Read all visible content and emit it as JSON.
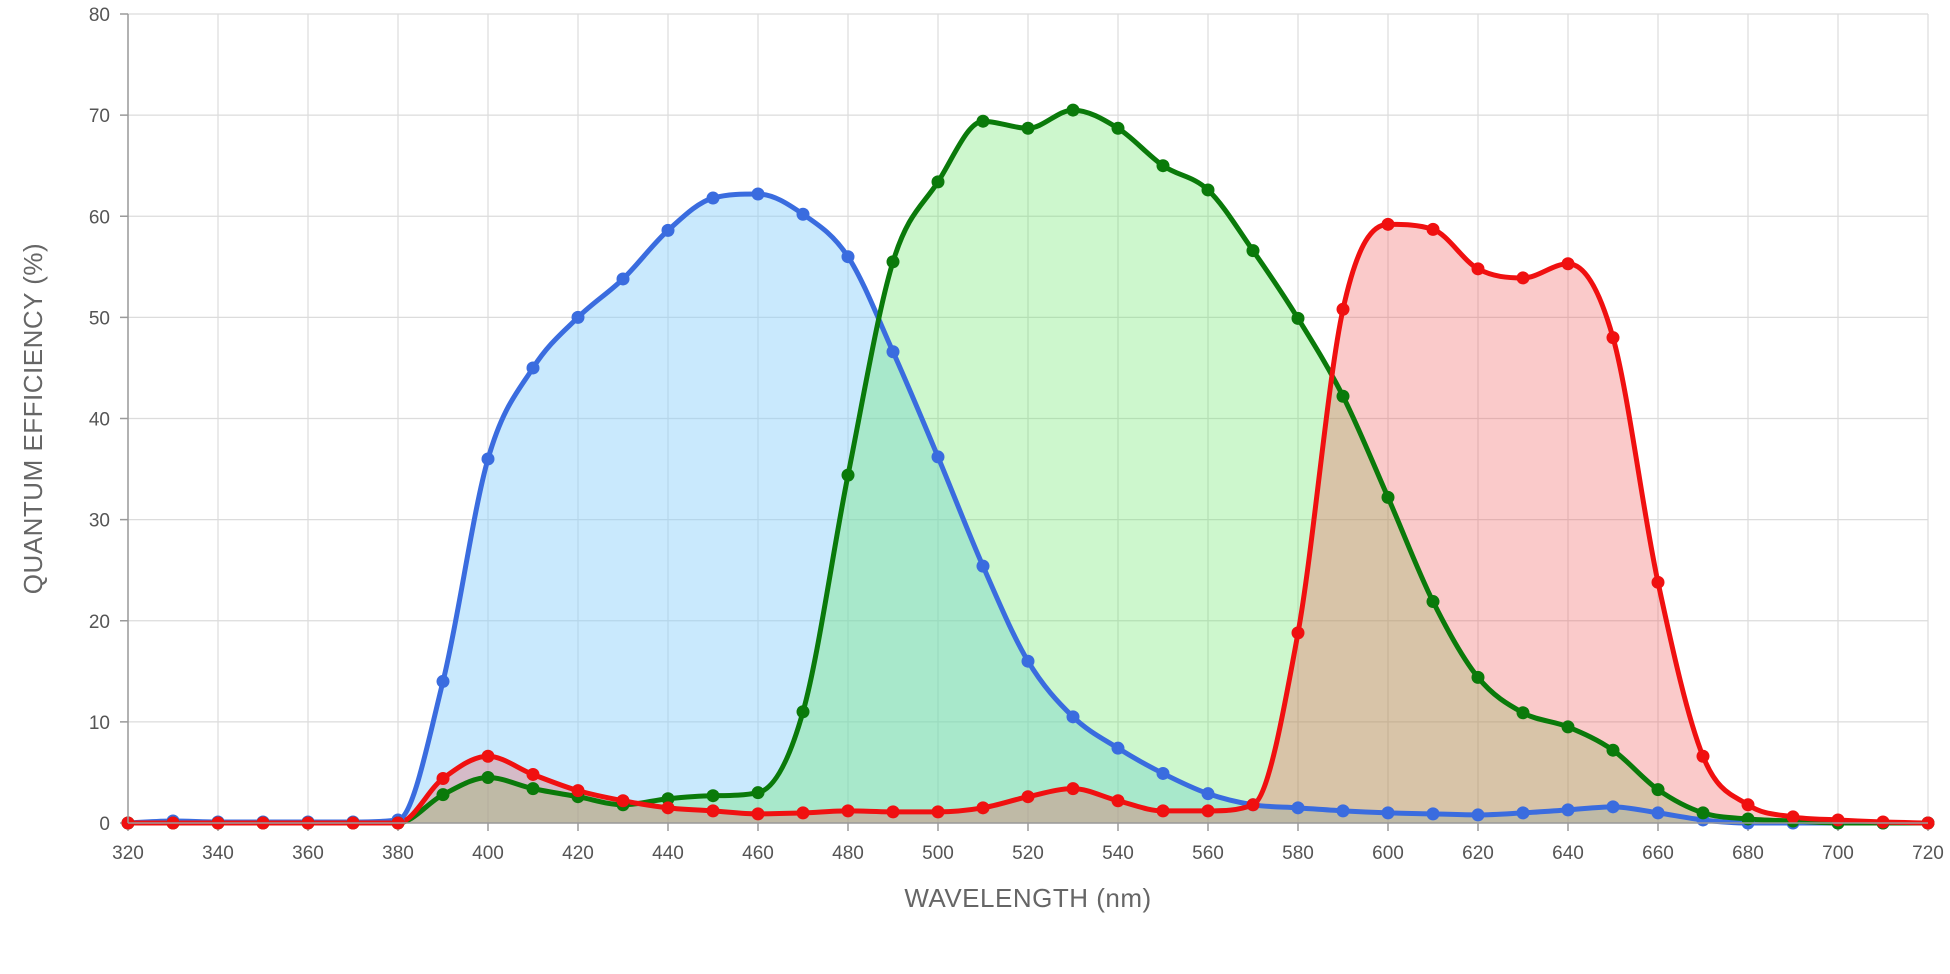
{
  "chart_data": {
    "type": "area",
    "xlabel": "WAVELENGTH (nm)",
    "ylabel": "QUANTUM EFFICIENCY (%)",
    "xlim": [
      320,
      720
    ],
    "ylim": [
      0,
      80
    ],
    "x_ticks": [
      320,
      340,
      360,
      380,
      400,
      420,
      440,
      460,
      480,
      500,
      520,
      540,
      560,
      580,
      600,
      620,
      640,
      660,
      680,
      700,
      720
    ],
    "y_ticks": [
      0,
      10,
      20,
      30,
      40,
      50,
      60,
      70,
      80
    ],
    "grid": true,
    "legend": "none",
    "x": [
      320,
      330,
      340,
      350,
      360,
      370,
      380,
      390,
      400,
      410,
      420,
      430,
      440,
      450,
      460,
      470,
      480,
      490,
      500,
      510,
      520,
      530,
      540,
      550,
      560,
      570,
      580,
      590,
      600,
      610,
      620,
      630,
      640,
      650,
      660,
      670,
      680,
      690,
      700,
      710,
      720
    ],
    "series": [
      {
        "color": "#3a6cdf",
        "fill": "rgba(135,206,250,0.45)",
        "values": [
          0,
          0.2,
          0.1,
          0.1,
          0.1,
          0.1,
          0.3,
          14,
          36,
          45,
          50,
          53.8,
          58.6,
          61.8,
          62.2,
          60.2,
          56,
          46.6,
          36.2,
          25.4,
          16,
          10.5,
          7.4,
          4.9,
          2.9,
          1.8,
          1.5,
          1.2,
          1,
          0.9,
          0.8,
          1,
          1.3,
          1.6,
          1,
          0.3,
          0,
          0,
          0,
          0,
          0
        ]
      },
      {
        "color": "#0a7a0a",
        "fill": "rgba(100,230,100,0.32)",
        "values": [
          0,
          0,
          0,
          0,
          0,
          0,
          0,
          2.8,
          4.5,
          3.4,
          2.6,
          1.8,
          2.4,
          2.7,
          3,
          11,
          34.4,
          55.5,
          63.4,
          69.4,
          68.7,
          70.5,
          68.7,
          65,
          62.6,
          56.6,
          49.9,
          42.2,
          32.2,
          21.9,
          14.4,
          10.9,
          9.5,
          7.2,
          3.3,
          1,
          0.4,
          0.2,
          0,
          0,
          0
        ]
      },
      {
        "color": "#f01010",
        "fill": "rgba(240,90,90,0.32)",
        "values": [
          0,
          0,
          0,
          0,
          0,
          0,
          0,
          4.4,
          6.6,
          4.8,
          3.2,
          2.2,
          1.5,
          1.2,
          0.9,
          1,
          1.2,
          1.1,
          1.1,
          1.5,
          2.6,
          3.4,
          2.2,
          1.2,
          1.2,
          1.8,
          18.8,
          50.8,
          59.2,
          58.7,
          54.8,
          53.9,
          55.3,
          48,
          23.8,
          6.6,
          1.8,
          0.6,
          0.3,
          0.1,
          0
        ]
      }
    ]
  }
}
